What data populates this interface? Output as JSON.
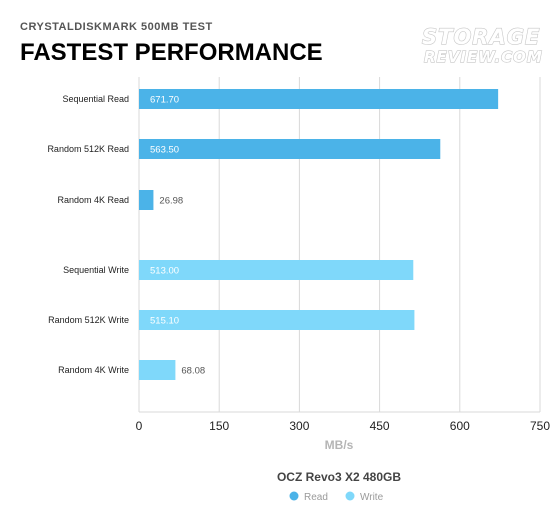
{
  "chart_data": {
    "type": "bar",
    "orientation": "horizontal",
    "subtitle": "CRYSTALDISKMARK 500MB TEST",
    "title": "FASTEST PERFORMANCE",
    "logo": [
      "STORAGE",
      "REVIEW.COM"
    ],
    "legend_title": "OCZ Revo3 X2 480GB",
    "legend_position": "bottom",
    "xlabel": "MB/s",
    "xlim": [
      0,
      750
    ],
    "xticks": [
      0,
      150,
      300,
      450,
      600,
      750
    ],
    "grid": true,
    "categories": [
      "Sequential Read",
      "Random 512K Read",
      "Random 4K Read",
      "Sequential Write",
      "Random 512K Write",
      "Random 4K Write"
    ],
    "series": [
      {
        "name": "Read",
        "color": "#4bb3e8",
        "values": [
          671.7,
          563.5,
          26.98,
          null,
          null,
          null
        ]
      },
      {
        "name": "Write",
        "color": "#7fd8fa",
        "values": [
          null,
          null,
          null,
          513.0,
          515.1,
          68.08
        ]
      }
    ],
    "value_labels": [
      "671.70",
      "563.50",
      "26.98",
      "513.00",
      "515.10",
      "68.08"
    ]
  }
}
